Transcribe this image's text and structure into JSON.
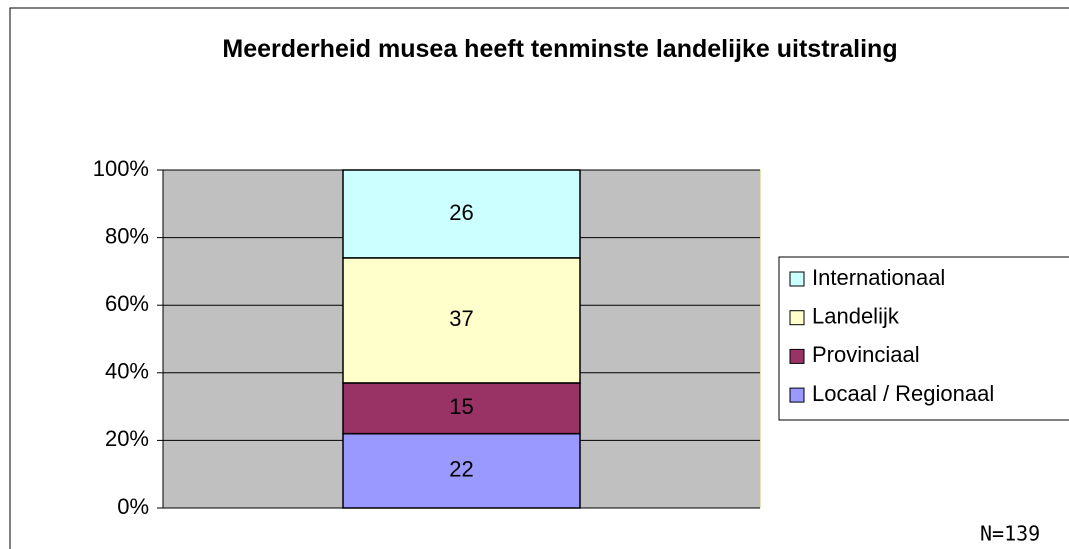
{
  "chart_data": {
    "type": "stacked_bar",
    "title": "Meerderheid musea heeft tenminste landelijke uitstraling",
    "categories": [
      null
    ],
    "series": [
      {
        "name": "Locaal / Regionaal",
        "color": "#9999ff",
        "values": [
          22
        ]
      },
      {
        "name": "Provinciaal",
        "color": "#993366",
        "values": [
          15
        ]
      },
      {
        "name": "Landelijk",
        "color": "#ffffcc",
        "values": [
          37
        ]
      },
      {
        "name": "Internationaal",
        "color": "#ccffff",
        "values": [
          26
        ]
      }
    ],
    "ylim": [
      0,
      100
    ],
    "yticks": [
      {
        "value": 0,
        "label": "0%"
      },
      {
        "value": 20,
        "label": "20%"
      },
      {
        "value": 40,
        "label": "40%"
      },
      {
        "value": 60,
        "label": "60%"
      },
      {
        "value": 80,
        "label": "80%"
      },
      {
        "value": 100,
        "label": "100%"
      }
    ],
    "grid": true,
    "legend": "right",
    "annotation": "N=139"
  }
}
